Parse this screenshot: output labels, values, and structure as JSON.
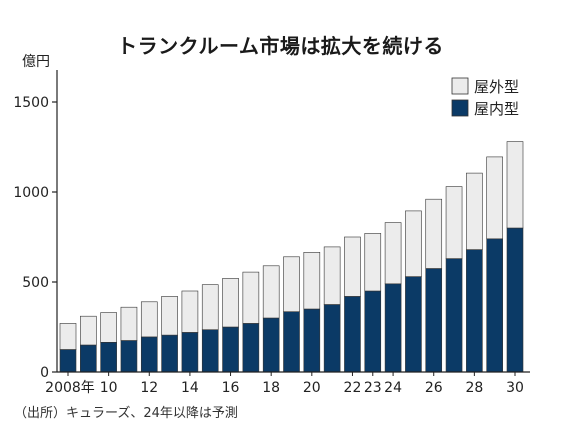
{
  "chart_data": {
    "type": "bar",
    "stacked": true,
    "title": "トランクルーム市場は拡大を続ける",
    "ylabel": "億円",
    "ylim": [
      0,
      1650
    ],
    "yticks": [
      0,
      500,
      1000,
      1500
    ],
    "grid": false,
    "legend_position": "top-right",
    "categories": [
      "2008",
      "2009",
      "2010",
      "2011",
      "2012",
      "2013",
      "2014",
      "2015",
      "2016",
      "2017",
      "2018",
      "2019",
      "2020",
      "2021",
      "2022",
      "2023",
      "2024",
      "2025",
      "2026",
      "2027",
      "2028",
      "2029",
      "2030"
    ],
    "tick_labels": [
      {
        "index": 0,
        "label": "2008年"
      },
      {
        "index": 2,
        "label": "10"
      },
      {
        "index": 4,
        "label": "12"
      },
      {
        "index": 6,
        "label": "14"
      },
      {
        "index": 8,
        "label": "16"
      },
      {
        "index": 10,
        "label": "18"
      },
      {
        "index": 12,
        "label": "20"
      },
      {
        "index": 14,
        "label": "22"
      },
      {
        "index": 15,
        "label": "23"
      },
      {
        "index": 16,
        "label": "24"
      },
      {
        "index": 18,
        "label": "26"
      },
      {
        "index": 20,
        "label": "28"
      },
      {
        "index": 22,
        "label": "30"
      }
    ],
    "series": [
      {
        "name": "屋内型",
        "color": "#0b3a66",
        "values": [
          125,
          150,
          165,
          175,
          195,
          205,
          220,
          235,
          250,
          270,
          300,
          335,
          350,
          375,
          420,
          450,
          490,
          530,
          575,
          630,
          680,
          740,
          800
        ]
      },
      {
        "name": "屋外型",
        "color": "#ececec",
        "values": [
          145,
          160,
          165,
          185,
          195,
          215,
          230,
          250,
          270,
          285,
          290,
          305,
          315,
          320,
          330,
          320,
          340,
          365,
          385,
          400,
          425,
          455,
          480
        ]
      }
    ],
    "source": "（出所）キュラーズ、24年以降は予測"
  }
}
